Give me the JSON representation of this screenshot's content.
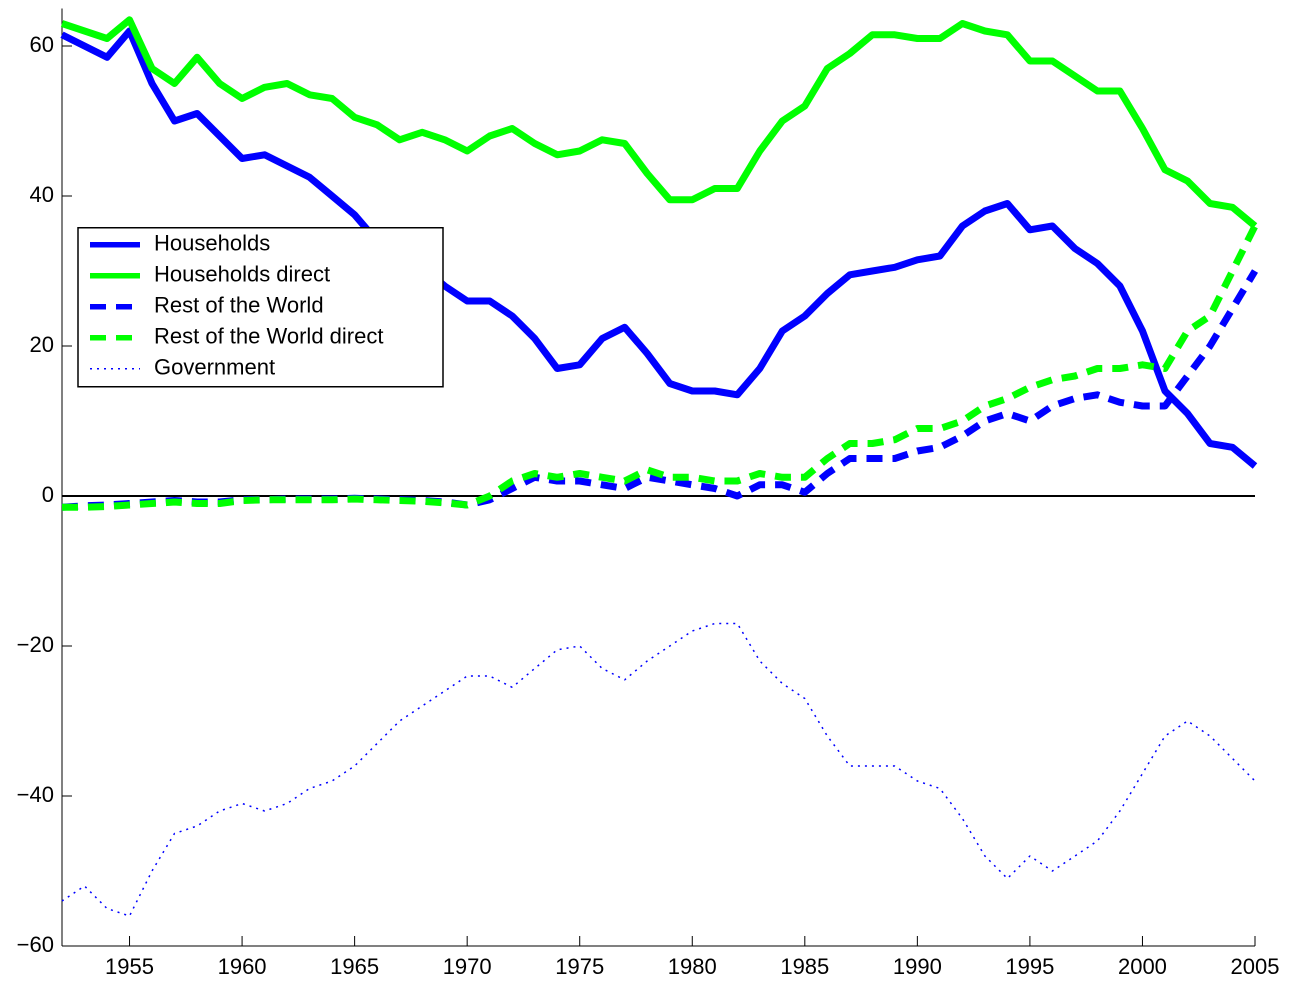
{
  "chart_data": {
    "type": "line",
    "x": [
      1952,
      1953,
      1954,
      1955,
      1956,
      1957,
      1958,
      1959,
      1960,
      1961,
      1962,
      1963,
      1964,
      1965,
      1966,
      1967,
      1968,
      1969,
      1970,
      1971,
      1972,
      1973,
      1974,
      1975,
      1976,
      1977,
      1978,
      1979,
      1980,
      1981,
      1982,
      1983,
      1984,
      1985,
      1986,
      1987,
      1988,
      1989,
      1990,
      1991,
      1992,
      1993,
      1994,
      1995,
      1996,
      1997,
      1998,
      1999,
      2000,
      2001,
      2002,
      2003,
      2004,
      2005
    ],
    "series": [
      {
        "name": "Households",
        "color": "#0000ff",
        "dash": "solid",
        "linewidth": 7,
        "values": [
          61.5,
          60,
          58.5,
          62,
          55,
          50,
          51,
          48,
          45,
          45.5,
          44,
          42.5,
          40,
          37.5,
          34,
          31,
          30.5,
          28,
          26,
          26,
          24,
          21,
          17,
          17.5,
          21,
          22.5,
          19,
          15,
          14,
          14,
          13.5,
          17,
          22,
          24,
          27,
          29.5,
          30,
          30.5,
          31.5,
          32,
          36,
          38,
          39,
          35.5,
          36,
          33,
          31,
          28,
          22,
          14,
          11,
          7,
          6.5,
          4
        ]
      },
      {
        "name": "Households direct",
        "color": "#00ff00",
        "dash": "solid",
        "linewidth": 7,
        "values": [
          63,
          62,
          61,
          63.5,
          57,
          55,
          58.5,
          55,
          53,
          54.5,
          55,
          53.5,
          53,
          50.5,
          49.5,
          47.5,
          48.5,
          47.5,
          46,
          48,
          49,
          47,
          45.5,
          46,
          47.5,
          47,
          43,
          39.5,
          39.5,
          41,
          41,
          46,
          50,
          52,
          57,
          59,
          61.5,
          61.5,
          61,
          61,
          63,
          62,
          61.5,
          58,
          58,
          56,
          54,
          54,
          49,
          43.5,
          42,
          39,
          38.5,
          36
        ]
      },
      {
        "name": "Rest of the World",
        "color": "#0000ff",
        "dash": "dashed",
        "linewidth": 7,
        "values": [
          -1.5,
          -1.3,
          -1.2,
          -1,
          -0.8,
          -0.6,
          -0.8,
          -0.8,
          -0.5,
          -0.5,
          -0.4,
          -0.4,
          -0.4,
          -0.3,
          -0.4,
          -0.5,
          -0.6,
          -0.8,
          -1.2,
          -0.5,
          1,
          2.5,
          2,
          2,
          1.5,
          1,
          2.5,
          2,
          1.5,
          1,
          0,
          1.5,
          1.5,
          0.5,
          3,
          5,
          5,
          5,
          6,
          6.5,
          8,
          10,
          11,
          10,
          12,
          13,
          13.5,
          12.5,
          12,
          12,
          16,
          20,
          25,
          30
        ]
      },
      {
        "name": "Rest of the World direct",
        "color": "#00ff00",
        "dash": "dashed",
        "linewidth": 7,
        "values": [
          -1.5,
          -1.5,
          -1.4,
          -1.2,
          -1,
          -0.8,
          -1,
          -1,
          -0.6,
          -0.5,
          -0.5,
          -0.5,
          -0.5,
          -0.4,
          -0.5,
          -0.6,
          -0.7,
          -0.9,
          -1.2,
          0,
          2,
          3,
          2.5,
          3,
          2.5,
          2,
          3.5,
          2.5,
          2.5,
          2,
          2,
          3,
          2.5,
          2.5,
          5,
          7,
          7,
          7.5,
          9,
          9,
          10,
          12,
          13,
          14.5,
          15.5,
          16,
          17,
          17,
          17.5,
          17,
          22,
          24,
          30,
          36
        ]
      },
      {
        "name": "Government",
        "color": "#0000ff",
        "dash": "dotted",
        "linewidth": 1.5,
        "values": [
          -54,
          -52,
          -55,
          -56,
          -50,
          -45,
          -44,
          -42,
          -41,
          -42,
          -41,
          -39,
          -38,
          -36,
          -33,
          -30,
          -28,
          -26,
          -24,
          -24,
          -25.5,
          -23,
          -20.5,
          -20,
          -23,
          -24.5,
          -22,
          -20,
          -18,
          -17,
          -17,
          -22,
          -25,
          -27,
          -32,
          -36,
          -36,
          -36,
          -38,
          -39,
          -43,
          -48,
          -51,
          -48,
          -50,
          -48,
          -46,
          -42,
          -37,
          -32,
          -30,
          -32,
          -35,
          -38
        ]
      }
    ],
    "xlim": [
      1952,
      2005
    ],
    "xticks": [
      1955,
      1960,
      1965,
      1970,
      1975,
      1980,
      1985,
      1990,
      1995,
      2000,
      2005
    ],
    "ylim": [
      -60,
      65
    ],
    "yticks": [
      {
        "value": -60,
        "label": "−60"
      },
      {
        "value": -40,
        "label": "−40"
      },
      {
        "value": -20,
        "label": "−20"
      },
      0,
      20,
      40,
      60
    ],
    "legend": "center left",
    "grid": false
  }
}
